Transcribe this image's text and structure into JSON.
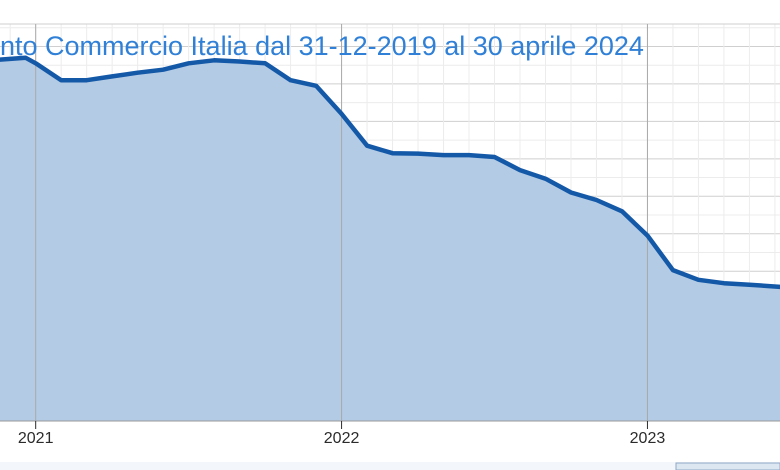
{
  "chart_data": {
    "type": "area",
    "title": "nto Commercio Italia dal 31-12-2019 al 30 aprile 2024",
    "xlabel": "",
    "ylabel": "",
    "x_ticks": [
      {
        "label": "2021",
        "month": 0
      },
      {
        "label": "2022",
        "month": 12
      },
      {
        "label": "2023",
        "month": 24
      }
    ],
    "xlim": [
      -1.4,
      29.2
    ],
    "ylim": [
      0,
      100
    ],
    "grid": true,
    "legend": "none",
    "series": [
      {
        "x": [
          -1.4,
          -0.4,
          0,
          1,
          2,
          3,
          4,
          5,
          6,
          7,
          8,
          9,
          10,
          11,
          12,
          13,
          14,
          15,
          16,
          17,
          18,
          19,
          20,
          21,
          22,
          23,
          24,
          25,
          26,
          27,
          28,
          29.2
        ],
        "values": [
          96.5,
          97,
          95.5,
          91,
          91,
          92,
          93,
          93.8,
          95.5,
          96.3,
          96,
          95.5,
          91,
          89.5,
          82,
          73.5,
          71.5,
          71.4,
          71,
          71,
          70.5,
          67,
          64.7,
          61,
          59,
          56,
          49.5,
          40.3,
          37.7,
          36.8,
          36.4,
          35.8
        ]
      }
    ],
    "colors": {
      "line": "#1458a8",
      "fill": "#b3cbe4",
      "title": "#2f80d6",
      "tick": "#2b2b2b",
      "grid_major": "#cfcfcf",
      "grid_minor": "#ececec",
      "year_line": "#a9a9a9"
    }
  }
}
